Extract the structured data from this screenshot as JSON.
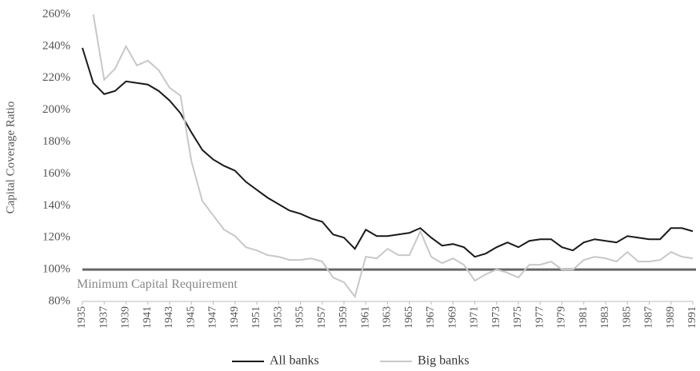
{
  "chart_data": {
    "type": "line",
    "y_label": "Capital Coverage Ratio",
    "x": [
      1935,
      1936,
      1937,
      1938,
      1939,
      1940,
      1941,
      1942,
      1943,
      1944,
      1945,
      1946,
      1947,
      1948,
      1949,
      1950,
      1951,
      1952,
      1953,
      1954,
      1955,
      1956,
      1957,
      1958,
      1959,
      1960,
      1961,
      1962,
      1963,
      1964,
      1965,
      1966,
      1967,
      1968,
      1969,
      1970,
      1971,
      1972,
      1973,
      1974,
      1975,
      1976,
      1977,
      1978,
      1979,
      1980,
      1981,
      1982,
      1983,
      1984,
      1985,
      1986,
      1987,
      1988,
      1989,
      1990,
      1991
    ],
    "xlim": [
      1935,
      1991
    ],
    "xticks": [
      1935,
      1937,
      1939,
      1941,
      1943,
      1945,
      1947,
      1949,
      1951,
      1953,
      1955,
      1957,
      1959,
      1961,
      1963,
      1965,
      1967,
      1969,
      1971,
      1973,
      1975,
      1977,
      1979,
      1981,
      1983,
      1985,
      1987,
      1989,
      1991
    ],
    "ylim": [
      80,
      260
    ],
    "yticks": [
      {
        "value": 80,
        "label": "80%"
      },
      {
        "value": 100,
        "label": "100%"
      },
      {
        "value": 120,
        "label": "120%"
      },
      {
        "value": 140,
        "label": "140%"
      },
      {
        "value": 160,
        "label": "160%"
      },
      {
        "value": 180,
        "label": "180%"
      },
      {
        "value": 200,
        "label": "200%"
      },
      {
        "value": 220,
        "label": "220%"
      },
      {
        "value": 240,
        "label": "240%"
      },
      {
        "value": 260,
        "label": "260%"
      }
    ],
    "reference_line": {
      "value": 100,
      "label": "Minimum Capital Requirement",
      "color": "#666666"
    },
    "legend": "bottom",
    "series": [
      {
        "name": "All banks",
        "color": "#1a1a1a",
        "values": [
          239,
          217,
          210,
          212,
          218,
          217,
          216,
          212,
          206,
          198,
          186,
          175,
          169,
          165,
          162,
          155,
          150,
          145,
          141,
          137,
          135,
          132,
          130,
          122,
          120,
          113,
          125,
          121,
          121,
          122,
          123,
          126,
          120,
          115,
          116,
          114,
          108,
          110,
          114,
          117,
          114,
          118,
          119,
          119,
          114,
          112,
          117,
          119,
          118,
          117,
          121,
          120,
          119,
          119,
          126,
          126,
          124
        ]
      },
      {
        "name": "Big banks",
        "color": "#c8c8c8",
        "values": [
          null,
          260,
          219,
          226,
          240,
          228,
          231,
          225,
          214,
          209,
          168,
          143,
          134,
          125,
          121,
          114,
          112,
          109,
          108,
          106,
          106,
          107,
          105,
          95,
          92,
          83,
          108,
          107,
          113,
          109,
          109,
          124,
          108,
          104,
          107,
          103,
          93,
          97,
          100,
          98,
          95,
          103,
          103,
          105,
          100,
          100,
          106,
          108,
          107,
          105,
          111,
          105,
          105,
          106,
          111,
          108,
          107
        ]
      }
    ]
  }
}
